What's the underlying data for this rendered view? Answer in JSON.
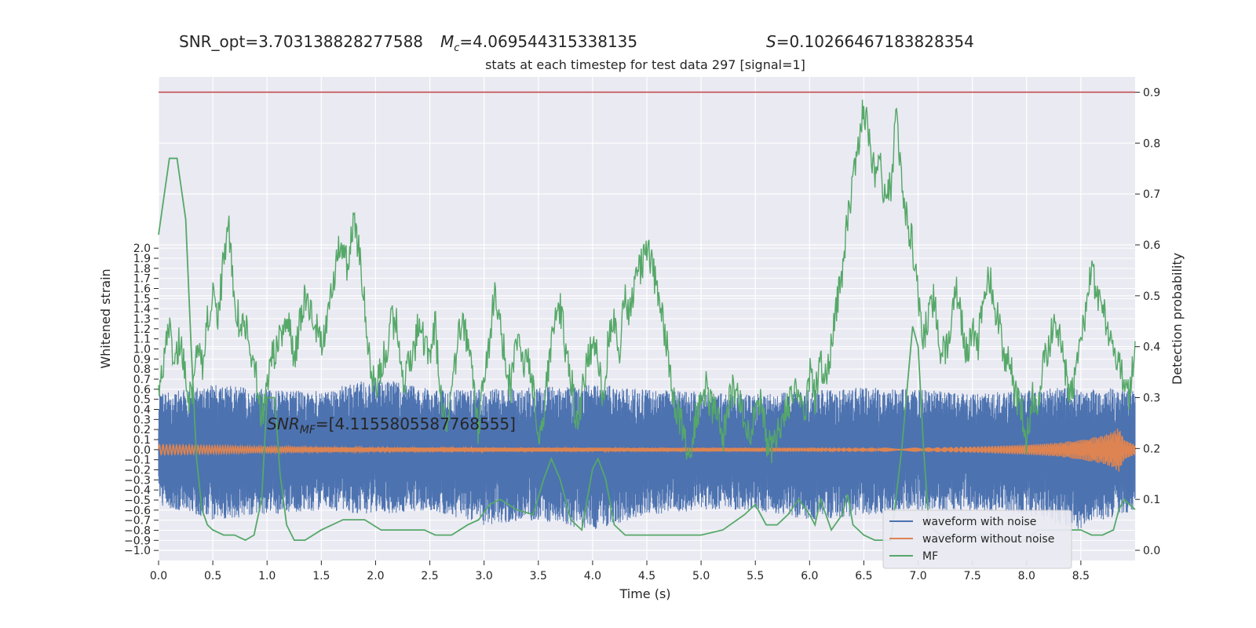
{
  "chart_data": {
    "type": "line",
    "header": {
      "snr_opt": "SNR_opt=3.703138828277588",
      "mc": "=4.069544315338135",
      "mc_symbol": "M",
      "mc_sub": "c",
      "s_symbol": "S",
      "s_value": "=0.10266467183828354"
    },
    "subtitle": "stats at each timestep for test data 297 [signal=1]",
    "xlabel": "Time (s)",
    "ylabel_left": "Whitened strain",
    "ylabel_right": "Detection probability",
    "xlim": [
      0,
      9.0
    ],
    "ylim_left": [
      -1.1,
      3.7
    ],
    "ylim_right": [
      -0.02,
      0.93
    ],
    "x_ticks": [
      "0.0",
      "0.5",
      "1.0",
      "1.5",
      "2.0",
      "2.5",
      "3.0",
      "3.5",
      "4.0",
      "4.5",
      "5.0",
      "5.5",
      "6.0",
      "6.5",
      "7.0",
      "7.5",
      "8.0",
      "8.5"
    ],
    "x_tick_values": [
      0,
      0.5,
      1.0,
      1.5,
      2.0,
      2.5,
      3.0,
      3.5,
      4.0,
      4.5,
      5.0,
      5.5,
      6.0,
      6.5,
      7.0,
      7.5,
      8.0,
      8.5
    ],
    "y_left_ticks": [
      "2.0",
      "1.9",
      "1.8",
      "1.7",
      "1.6",
      "1.5",
      "1.4",
      "1.3",
      "1.2",
      "1.1",
      "1.0",
      "0.9",
      "0.8",
      "0.7",
      "0.6",
      "0.5",
      "0.4",
      "0.3",
      "0.2",
      "0.1",
      "0.0",
      "−0.1",
      "−0.2",
      "−0.3",
      "−0.4",
      "−0.5",
      "−0.6",
      "−0.7",
      "−0.8",
      "−0.9",
      "−1.0"
    ],
    "y_left_tick_values": [
      2.0,
      1.9,
      1.8,
      1.7,
      1.6,
      1.5,
      1.4,
      1.3,
      1.2,
      1.1,
      1.0,
      0.9,
      0.8,
      0.7,
      0.6,
      0.5,
      0.4,
      0.3,
      0.2,
      0.1,
      0.0,
      -0.1,
      -0.2,
      -0.3,
      -0.4,
      -0.5,
      -0.6,
      -0.7,
      -0.8,
      -0.9,
      -1.0
    ],
    "y_right_ticks": [
      "0.9",
      "0.8",
      "0.7",
      "0.6",
      "0.5",
      "0.4",
      "0.3",
      "0.2",
      "0.1",
      "0.0"
    ],
    "y_right_tick_values": [
      0.9,
      0.8,
      0.7,
      0.6,
      0.5,
      0.4,
      0.3,
      0.2,
      0.1,
      0.0
    ],
    "threshold": 0.9,
    "annotation": {
      "prefix": "SNR",
      "sub": "MF",
      "rest": "=[4.1155805587768555]",
      "x": 1.0,
      "y": 0.2
    },
    "legend": {
      "position": "lower-right",
      "entries": [
        "waveform with noise",
        "waveform without noise",
        "MF"
      ]
    },
    "colors": {
      "noise": "#4c72b0",
      "clean": "#dd8452",
      "mf": "#55a868",
      "threshold": "#c44e52",
      "background": "#eaeaf2",
      "grid": "#ffffff"
    },
    "series": [
      {
        "name": "waveform with noise",
        "axis": "left",
        "envelope": {
          "x": [
            0,
            0.5,
            1.0,
            1.5,
            2.0,
            2.5,
            3.0,
            3.5,
            4.0,
            4.5,
            5.0,
            5.5,
            6.0,
            6.5,
            7.0,
            7.5,
            8.0,
            8.5,
            9.0
          ],
          "upper": [
            0.55,
            0.65,
            0.6,
            0.58,
            0.72,
            0.6,
            0.6,
            0.62,
            0.65,
            0.6,
            0.58,
            0.55,
            0.6,
            0.62,
            0.6,
            0.55,
            0.6,
            0.62,
            0.6
          ],
          "lower": [
            -0.55,
            -0.7,
            -0.65,
            -0.6,
            -0.65,
            -0.6,
            -0.75,
            -0.7,
            -0.8,
            -0.65,
            -0.6,
            -0.6,
            -0.7,
            -0.65,
            -0.6,
            -0.6,
            -0.65,
            -0.8,
            -0.6
          ]
        }
      },
      {
        "name": "waveform without noise",
        "axis": "left",
        "x": [
          0,
          1,
          2,
          3,
          4,
          5,
          6,
          7,
          7.5,
          8.0,
          8.3,
          8.5,
          8.7,
          8.8,
          8.85,
          8.9,
          9.0
        ],
        "amplitude": [
          0.05,
          0.03,
          0.02,
          0.02,
          0.02,
          0.02,
          0.02,
          0.02,
          0.03,
          0.05,
          0.07,
          0.1,
          0.14,
          0.18,
          0.22,
          0.1,
          0.05
        ]
      },
      {
        "name": "MF",
        "axis": "right",
        "x": [
          0,
          0.1,
          0.17,
          0.25,
          0.3,
          0.35,
          0.4,
          0.45,
          0.5,
          0.6,
          0.7,
          0.8,
          0.88,
          0.95,
          1.0,
          1.07,
          1.12,
          1.18,
          1.25,
          1.35,
          1.5,
          1.7,
          1.9,
          2.05,
          2.2,
          2.35,
          2.45,
          2.55,
          2.7,
          2.85,
          2.95,
          3.05,
          3.15,
          3.3,
          3.45,
          3.55,
          3.62,
          3.7,
          3.8,
          3.9,
          4.0,
          4.05,
          4.12,
          4.2,
          4.3,
          4.45,
          4.6,
          4.8,
          5.0,
          5.2,
          5.4,
          5.5,
          5.6,
          5.7,
          5.8,
          5.9,
          6.0,
          6.05,
          6.1,
          6.2,
          6.3,
          6.35,
          6.4,
          6.5,
          6.6,
          6.75,
          6.85,
          6.95,
          7.0,
          7.05,
          7.1,
          7.2,
          7.4,
          7.6,
          7.8,
          8.0,
          8.1,
          8.2,
          8.35,
          8.5,
          8.6,
          8.7,
          8.8,
          8.85,
          8.9,
          9.0
        ],
        "y": [
          0.62,
          0.77,
          0.77,
          0.65,
          0.4,
          0.18,
          0.08,
          0.05,
          0.04,
          0.03,
          0.03,
          0.02,
          0.03,
          0.1,
          0.3,
          0.3,
          0.15,
          0.05,
          0.02,
          0.02,
          0.04,
          0.06,
          0.06,
          0.04,
          0.04,
          0.04,
          0.04,
          0.03,
          0.03,
          0.05,
          0.06,
          0.09,
          0.1,
          0.08,
          0.07,
          0.14,
          0.18,
          0.14,
          0.06,
          0.04,
          0.16,
          0.18,
          0.14,
          0.05,
          0.03,
          0.03,
          0.03,
          0.03,
          0.03,
          0.04,
          0.07,
          0.09,
          0.05,
          0.05,
          0.07,
          0.1,
          0.07,
          0.05,
          0.1,
          0.04,
          0.07,
          0.11,
          0.05,
          0.03,
          0.02,
          0.02,
          0.2,
          0.44,
          0.4,
          0.2,
          0.05,
          0.03,
          0.03,
          0.03,
          0.02,
          0.02,
          0.04,
          0.04,
          0.04,
          0.04,
          0.03,
          0.03,
          0.04,
          0.08,
          0.1,
          0.08
        ]
      },
      {
        "name": "detection probability",
        "axis": "right",
        "x": [
          0,
          0.05,
          0.1,
          0.15,
          0.2,
          0.25,
          0.3,
          0.35,
          0.4,
          0.45,
          0.5,
          0.55,
          0.6,
          0.65,
          0.7,
          0.75,
          0.8,
          0.85,
          0.9,
          0.95,
          1.0,
          1.05,
          1.1,
          1.15,
          1.2,
          1.25,
          1.3,
          1.35,
          1.4,
          1.45,
          1.5,
          1.55,
          1.6,
          1.65,
          1.7,
          1.75,
          1.8,
          1.85,
          1.9,
          1.95,
          2.0,
          2.05,
          2.1,
          2.15,
          2.2,
          2.25,
          2.3,
          2.35,
          2.4,
          2.45,
          2.5,
          2.55,
          2.6,
          2.65,
          2.7,
          2.75,
          2.8,
          2.85,
          2.9,
          2.95,
          3.0,
          3.05,
          3.1,
          3.15,
          3.2,
          3.25,
          3.3,
          3.35,
          3.4,
          3.45,
          3.5,
          3.55,
          3.6,
          3.65,
          3.7,
          3.75,
          3.8,
          3.85,
          3.9,
          3.95,
          4.0,
          4.05,
          4.1,
          4.15,
          4.2,
          4.25,
          4.3,
          4.35,
          4.4,
          4.45,
          4.5,
          4.55,
          4.6,
          4.65,
          4.7,
          4.75,
          4.8,
          4.85,
          4.9,
          4.95,
          5.0,
          5.05,
          5.1,
          5.15,
          5.2,
          5.25,
          5.3,
          5.35,
          5.4,
          5.45,
          5.5,
          5.55,
          5.6,
          5.65,
          5.7,
          5.75,
          5.8,
          5.85,
          5.9,
          5.95,
          6.0,
          6.05,
          6.1,
          6.15,
          6.2,
          6.25,
          6.3,
          6.35,
          6.4,
          6.45,
          6.5,
          6.55,
          6.6,
          6.65,
          6.7,
          6.75,
          6.8,
          6.85,
          6.9,
          6.95,
          7.0,
          7.05,
          7.1,
          7.15,
          7.2,
          7.25,
          7.3,
          7.35,
          7.4,
          7.45,
          7.5,
          7.55,
          7.6,
          7.65,
          7.7,
          7.75,
          7.8,
          7.85,
          7.9,
          7.95,
          8.0,
          8.05,
          8.1,
          8.15,
          8.2,
          8.25,
          8.3,
          8.35,
          8.4,
          8.45,
          8.5,
          8.55,
          8.6,
          8.65,
          8.7,
          8.75,
          8.8,
          8.85,
          8.9,
          8.95,
          9.0
        ],
        "y": [
          0.3,
          0.38,
          0.43,
          0.37,
          0.42,
          0.33,
          0.29,
          0.4,
          0.36,
          0.45,
          0.5,
          0.46,
          0.57,
          0.63,
          0.5,
          0.44,
          0.45,
          0.38,
          0.34,
          0.26,
          0.32,
          0.38,
          0.4,
          0.44,
          0.45,
          0.36,
          0.45,
          0.5,
          0.46,
          0.44,
          0.4,
          0.45,
          0.52,
          0.58,
          0.6,
          0.55,
          0.66,
          0.58,
          0.48,
          0.36,
          0.31,
          0.36,
          0.4,
          0.45,
          0.44,
          0.32,
          0.36,
          0.38,
          0.46,
          0.4,
          0.38,
          0.44,
          0.3,
          0.24,
          0.3,
          0.4,
          0.45,
          0.41,
          0.35,
          0.22,
          0.36,
          0.4,
          0.52,
          0.45,
          0.36,
          0.32,
          0.42,
          0.36,
          0.4,
          0.32,
          0.2,
          0.28,
          0.36,
          0.45,
          0.48,
          0.4,
          0.35,
          0.24,
          0.3,
          0.38,
          0.4,
          0.38,
          0.3,
          0.42,
          0.45,
          0.4,
          0.5,
          0.46,
          0.54,
          0.56,
          0.6,
          0.56,
          0.5,
          0.45,
          0.38,
          0.3,
          0.26,
          0.22,
          0.18,
          0.26,
          0.3,
          0.32,
          0.28,
          0.26,
          0.22,
          0.28,
          0.32,
          0.3,
          0.24,
          0.22,
          0.26,
          0.3,
          0.22,
          0.2,
          0.24,
          0.26,
          0.28,
          0.3,
          0.32,
          0.26,
          0.35,
          0.3,
          0.38,
          0.33,
          0.4,
          0.48,
          0.55,
          0.65,
          0.72,
          0.8,
          0.88,
          0.8,
          0.74,
          0.76,
          0.68,
          0.72,
          0.86,
          0.72,
          0.64,
          0.6,
          0.5,
          0.42,
          0.46,
          0.5,
          0.4,
          0.38,
          0.44,
          0.52,
          0.45,
          0.38,
          0.45,
          0.4,
          0.5,
          0.55,
          0.48,
          0.44,
          0.38,
          0.36,
          0.3,
          0.28,
          0.22,
          0.3,
          0.27,
          0.36,
          0.4,
          0.44,
          0.42,
          0.36,
          0.3,
          0.34,
          0.4,
          0.48,
          0.56,
          0.5,
          0.48,
          0.44,
          0.4,
          0.36,
          0.34,
          0.3,
          0.4
        ]
      }
    ]
  }
}
